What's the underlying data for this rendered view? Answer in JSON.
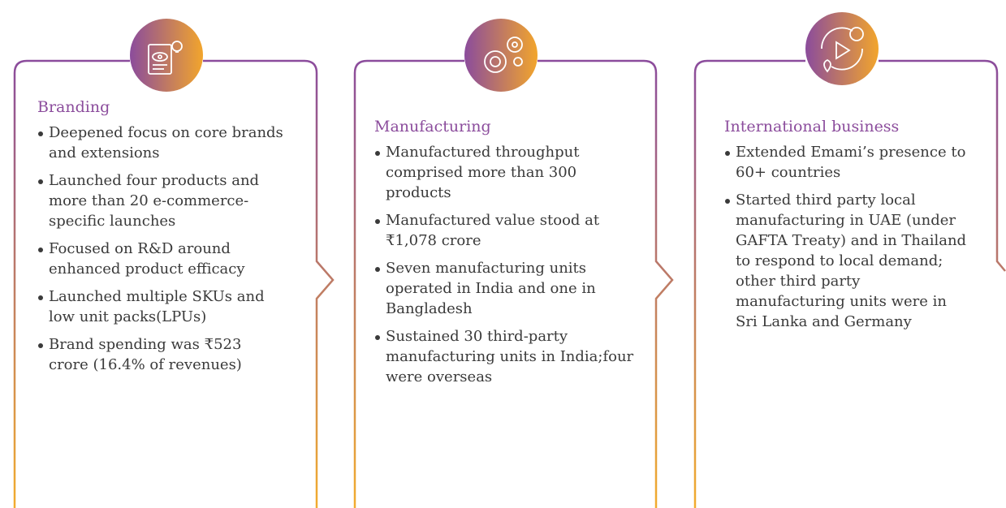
{
  "cards": [
    {
      "title": "Branding",
      "items": [
        "Deepened focus on core brands and extensions",
        "Launched four products and more than 20 e-commerce-specific launches",
        "Focused on R&D around enhanced product efficacy",
        "Launched multiple SKUs and low unit packs(LPUs)",
        "Brand spending was ₹523 crore (16.4% of revenues)"
      ]
    },
    {
      "title": "Manufacturing",
      "items": [
        "Manufactured throughput comprised more than 300 products",
        "Manufactured value stood at ₹1,078 crore",
        "Seven manufacturing units operated in India and one in Bangladesh",
        "Sustained 30 third-party manufacturing units in India;four were overseas"
      ]
    },
    {
      "title": "International business",
      "items": [
        "Extended Emami’s presence to 60+ countries",
        "Started third party local manufacturing in UAE (under GAFTA Treaty) and in Thailand to respond to local demand; other third party manufacturing units were in Sri Lanka and Germany"
      ]
    }
  ]
}
